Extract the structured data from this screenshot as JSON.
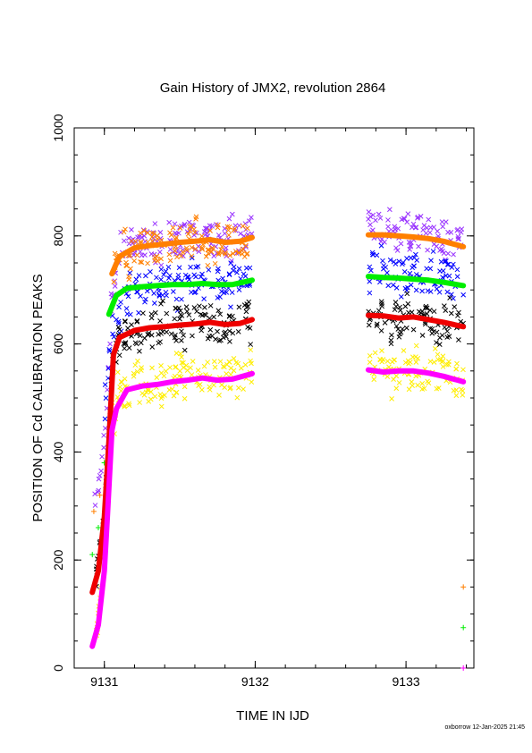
{
  "chart_data": {
    "type": "scatter",
    "title": "Gain History of JMX2, revolution 2864",
    "xlabel": "TIME IN IJD",
    "ylabel": "POSITION OF Cd CALIBRATION PEAKS",
    "xlim": [
      9130.8,
      9133.45
    ],
    "ylim": [
      0,
      1000
    ],
    "x_ticks": [
      "9131",
      "9132",
      "9133"
    ],
    "y_ticks": [
      "0",
      "200",
      "400",
      "600",
      "800",
      "1000"
    ],
    "grid": false,
    "legend": "none",
    "segments": [
      [
        9131.02,
        9131.98
      ],
      [
        9132.75,
        9133.38
      ]
    ],
    "series": [
      {
        "color": "#9933ff",
        "marker": "x",
        "x": [
          9130.93,
          9130.97,
          9131.0,
          9131.02,
          9131.05,
          9131.1,
          9131.2,
          9131.3,
          9131.4,
          9131.5,
          9131.6,
          9131.7,
          9131.8,
          9131.9,
          9131.98,
          9132.75,
          9132.85,
          9132.95,
          9133.05,
          9133.15,
          9133.25,
          9133.38
        ],
        "y": [
          300,
          350,
          420,
          520,
          700,
          760,
          785,
          790,
          795,
          798,
          800,
          800,
          795,
          800,
          805,
          815,
          812,
          808,
          805,
          805,
          800,
          790
        ]
      },
      {
        "color": "#0000ff",
        "marker": "x",
        "x": [
          9131.0,
          9131.02,
          9131.05,
          9131.1,
          9131.2,
          9131.3,
          9131.4,
          9131.5,
          9131.6,
          9131.7,
          9131.8,
          9131.9,
          9131.98,
          9132.75,
          9132.85,
          9132.95,
          9133.05,
          9133.15,
          9133.25,
          9133.38
        ],
        "y": [
          470,
          540,
          610,
          670,
          700,
          705,
          710,
          712,
          715,
          715,
          712,
          714,
          718,
          740,
          738,
          735,
          730,
          728,
          720,
          712
        ]
      },
      {
        "color": "#000000",
        "marker": "x",
        "x": [
          9130.92,
          9130.96,
          9131.0,
          9131.03,
          9131.06,
          9131.1,
          9131.2,
          9131.3,
          9131.4,
          9131.5,
          9131.6,
          9131.7,
          9131.8,
          9131.9,
          9131.98,
          9132.75,
          9132.85,
          9132.95,
          9133.05,
          9133.15,
          9133.25,
          9133.38
        ],
        "y": [
          130,
          200,
          280,
          420,
          580,
          610,
          625,
          630,
          635,
          638,
          640,
          640,
          635,
          640,
          650,
          660,
          650,
          645,
          650,
          645,
          640,
          635
        ]
      },
      {
        "color": "#ffee00",
        "marker": "x",
        "x": [
          9130.93,
          9130.97,
          9131.0,
          9131.03,
          9131.06,
          9131.1,
          9131.2,
          9131.3,
          9131.4,
          9131.5,
          9131.6,
          9131.7,
          9131.8,
          9131.9,
          9131.98,
          9132.75,
          9132.85,
          9132.95,
          9133.05,
          9133.15,
          9133.25,
          9133.38
        ],
        "y": [
          15,
          120,
          260,
          420,
          480,
          505,
          520,
          525,
          530,
          535,
          538,
          540,
          535,
          540,
          550,
          560,
          545,
          540,
          550,
          545,
          540,
          530
        ]
      },
      {
        "color": "#ff7f00",
        "marker": "x",
        "x": [
          9131.05,
          9131.1,
          9131.2,
          9131.3,
          9131.4,
          9131.5,
          9131.6,
          9131.7,
          9131.8,
          9131.9,
          9131.98
        ],
        "y": [
          730,
          760,
          775,
          780,
          785,
          788,
          790,
          792,
          788,
          787,
          795
        ]
      },
      {
        "color": "#ff7f00",
        "marker": "+",
        "x": [
          9130.93,
          9130.97,
          9131.0,
          9133.38
        ],
        "y": [
          290,
          320,
          380,
          150
        ]
      },
      {
        "color": "#ff7f00",
        "marker": "line",
        "x": [
          9131.05,
          9131.1,
          9131.2,
          9131.3,
          9131.4,
          9131.5,
          9131.6,
          9131.7,
          9131.8,
          9131.9,
          9131.98,
          9132.75,
          9132.85,
          9132.95,
          9133.05,
          9133.15,
          9133.25,
          9133.38
        ],
        "y": [
          730,
          762,
          778,
          782,
          785,
          788,
          790,
          793,
          788,
          790,
          797,
          802,
          802,
          800,
          798,
          795,
          790,
          780
        ]
      },
      {
        "color": "#00ee00",
        "marker": "line",
        "x": [
          9131.03,
          9131.08,
          9131.15,
          9131.25,
          9131.35,
          9131.45,
          9131.55,
          9131.65,
          9131.75,
          9131.85,
          9131.98,
          9132.75,
          9132.85,
          9132.95,
          9133.05,
          9133.15,
          9133.25,
          9133.38
        ],
        "y": [
          655,
          690,
          703,
          706,
          708,
          710,
          710,
          712,
          710,
          710,
          718,
          725,
          723,
          722,
          720,
          718,
          714,
          708
        ]
      },
      {
        "color": "#00ee00",
        "marker": "+",
        "x": [
          9130.92,
          9130.96,
          9131.0,
          9133.38
        ],
        "y": [
          210,
          260,
          380,
          75
        ]
      },
      {
        "color": "#ee0000",
        "marker": "line",
        "x": [
          9130.92,
          9130.96,
          9131.0,
          9131.03,
          9131.06,
          9131.1,
          9131.2,
          9131.3,
          9131.4,
          9131.5,
          9131.6,
          9131.7,
          9131.8,
          9131.9,
          9131.98,
          9132.75,
          9132.85,
          9132.95,
          9133.05,
          9133.15,
          9133.25,
          9133.38
        ],
        "y": [
          140,
          180,
          280,
          420,
          580,
          612,
          625,
          630,
          632,
          635,
          637,
          640,
          636,
          638,
          645,
          653,
          652,
          648,
          650,
          645,
          640,
          632
        ]
      },
      {
        "color": "#ff00ff",
        "marker": "line",
        "x": [
          9130.92,
          9130.96,
          9131.0,
          9131.02,
          9131.05,
          9131.08,
          9131.15,
          9131.25,
          9131.35,
          9131.45,
          9131.55,
          9131.65,
          9131.75,
          9131.85,
          9131.98,
          9132.75,
          9132.85,
          9132.95,
          9133.05,
          9133.15,
          9133.25,
          9133.38
        ],
        "y": [
          40,
          80,
          180,
          280,
          440,
          480,
          515,
          522,
          525,
          530,
          533,
          537,
          533,
          535,
          545,
          552,
          548,
          550,
          550,
          546,
          540,
          530
        ]
      },
      {
        "color": "#ff00ff",
        "marker": "+",
        "x": [
          9133.38
        ],
        "y": [
          0
        ]
      }
    ]
  },
  "footer": "oxborrow 12-Jan-2025 21:45"
}
